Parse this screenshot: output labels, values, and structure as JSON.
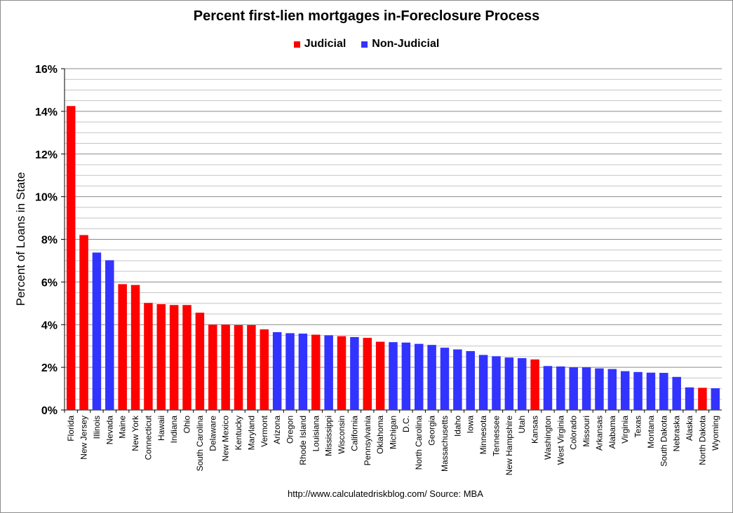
{
  "chart_data": {
    "type": "bar",
    "title": "Percent first-lien mortgages in-Foreclosure Process",
    "ylabel": "Percent of Loans in State",
    "xlabel": "",
    "ylim": [
      0,
      16
    ],
    "yticks": [
      "0%",
      "2%",
      "4%",
      "6%",
      "8%",
      "10%",
      "12%",
      "14%",
      "16%"
    ],
    "grid": true,
    "legend_position": "top-center",
    "legend": [
      {
        "name": "Judicial",
        "color": "#ff0000"
      },
      {
        "name": "Non-Judicial",
        "color": "#3333ff"
      }
    ],
    "colors": {
      "judicial": "#ff0000",
      "non_judicial": "#3333ff"
    },
    "categories": [
      "Florida",
      "New Jersey",
      "Illinois",
      "Nevada",
      "Maine",
      "New York",
      "Connecticut",
      "Hawaii",
      "Indiana",
      "Ohio",
      "South Carolina",
      "Delaware",
      "New Mexico",
      "Kentucky",
      "Maryland",
      "Vermont",
      "Arizona",
      "Oregon",
      "Rhode Island",
      "Louisiana",
      "Mississippi",
      "Wisconsin",
      "California",
      "Pennsylvania",
      "Oklahoma",
      "Michigan",
      "D.C.",
      "North Carolina",
      "Georgia",
      "Massachusetts",
      "Idaho",
      "Iowa",
      "Minnesota",
      "Tennessee",
      "New Hampshire",
      "Utah",
      "Kansas",
      "Washington",
      "West Virginia",
      "Colorado",
      "Missouri",
      "Arkansas",
      "Alabama",
      "Virginia",
      "Texas",
      "Montana",
      "South Dakota",
      "Nebraska",
      "Alaska",
      "North Dakota",
      "Wyoming"
    ],
    "values": [
      14.25,
      8.2,
      7.38,
      7.02,
      5.9,
      5.86,
      5.02,
      4.96,
      4.92,
      4.92,
      4.56,
      4.0,
      4.0,
      3.98,
      3.98,
      3.78,
      3.65,
      3.6,
      3.58,
      3.53,
      3.5,
      3.46,
      3.42,
      3.38,
      3.2,
      3.18,
      3.16,
      3.1,
      3.05,
      2.92,
      2.84,
      2.76,
      2.58,
      2.52,
      2.46,
      2.43,
      2.37,
      2.06,
      2.04,
      2.0,
      2.0,
      1.95,
      1.92,
      1.82,
      1.78,
      1.75,
      1.74,
      1.55,
      1.06,
      1.04,
      1.02
    ],
    "judicial": [
      true,
      true,
      false,
      false,
      true,
      true,
      true,
      true,
      true,
      true,
      true,
      true,
      true,
      true,
      true,
      true,
      false,
      false,
      false,
      true,
      false,
      true,
      false,
      true,
      true,
      false,
      false,
      false,
      false,
      false,
      false,
      false,
      false,
      false,
      false,
      false,
      true,
      false,
      false,
      false,
      false,
      false,
      false,
      false,
      false,
      false,
      false,
      false,
      false,
      true,
      false
    ]
  },
  "source": "http://www.calculatedriskblog.com/  Source: MBA"
}
